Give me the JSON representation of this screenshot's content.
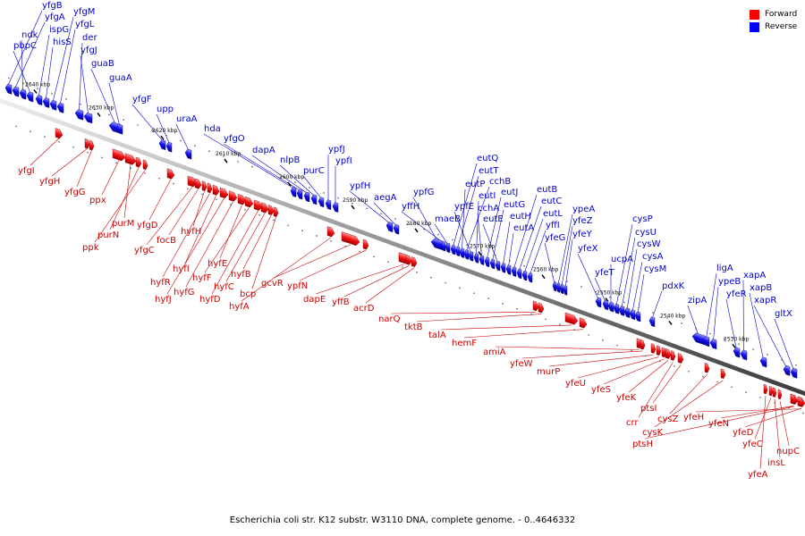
{
  "caption": "Escherichia coli str. K12 substr. W3110 DNA, complete genome. - 0..4646332",
  "legend": {
    "forward": "Forward",
    "reverse": "Reverse",
    "forward_color": "#ff0000",
    "reverse_color": "#0000ff"
  },
  "ticks": [
    "2640 kbp",
    "2630 kbp",
    "2620 kbp",
    "2610 kbp",
    "2600 kbp",
    "2590 kbp",
    "2580 kbp",
    "2570 kbp",
    "2560 kbp",
    "2550 kbp",
    "2540 kbp",
    "2530 kbp"
  ],
  "reverse_genes": [
    "yfgB",
    "yfgA",
    "ndk",
    "pbpC",
    "ispG",
    "hisS",
    "yfgM",
    "yfgL",
    "der",
    "yfgJ",
    "guaB",
    "guaA",
    "yfgF",
    "upp",
    "uraA",
    "hda",
    "yfgO",
    "dapA",
    "nlpB",
    "purC",
    "ypfJ",
    "ypfI",
    "ypfH",
    "aegA",
    "ypfG",
    "yffH",
    "maeB",
    "eutQ",
    "eutT",
    "eutP",
    "cchB",
    "ypfE",
    "eutI",
    "cchA",
    "eutJ",
    "eutG",
    "eutE",
    "eutH",
    "eutA",
    "eutB",
    "eutC",
    "eutL",
    "yffI",
    "yfeG",
    "ypeA",
    "yfeZ",
    "yfeY",
    "yfeX",
    "yfeT",
    "ucpA",
    "cysP",
    "cysU",
    "cysW",
    "cysA",
    "cysM",
    "pdxK",
    "zipA",
    "ligA",
    "ypeB",
    "yfeR",
    "xapA",
    "xapB",
    "xapR",
    "gltX"
  ],
  "forward_genes": [
    "yfgI",
    "yfgH",
    "yfgG",
    "ppx",
    "purM",
    "purN",
    "ppk",
    "yfgD",
    "yfgC",
    "focB",
    "hyfH",
    "hyfR",
    "hyfI",
    "hyfJ",
    "hyfG",
    "hyfE",
    "hyfF",
    "hyfD",
    "hyfC",
    "hyfB",
    "bcp",
    "hyfA",
    "gcvR",
    "ypfN",
    "dapE",
    "yffB",
    "acrD",
    "narQ",
    "tktB",
    "talA",
    "hemF",
    "amiA",
    "yfeW",
    "murP",
    "yfeU",
    "yfeS",
    "yfeK",
    "crr",
    "ptsI",
    "cysZ",
    "cysK",
    "ptsH",
    "yfeH",
    "yfeN",
    "yfeD",
    "yfeC",
    "insL",
    "nupC",
    "yfeA"
  ]
}
